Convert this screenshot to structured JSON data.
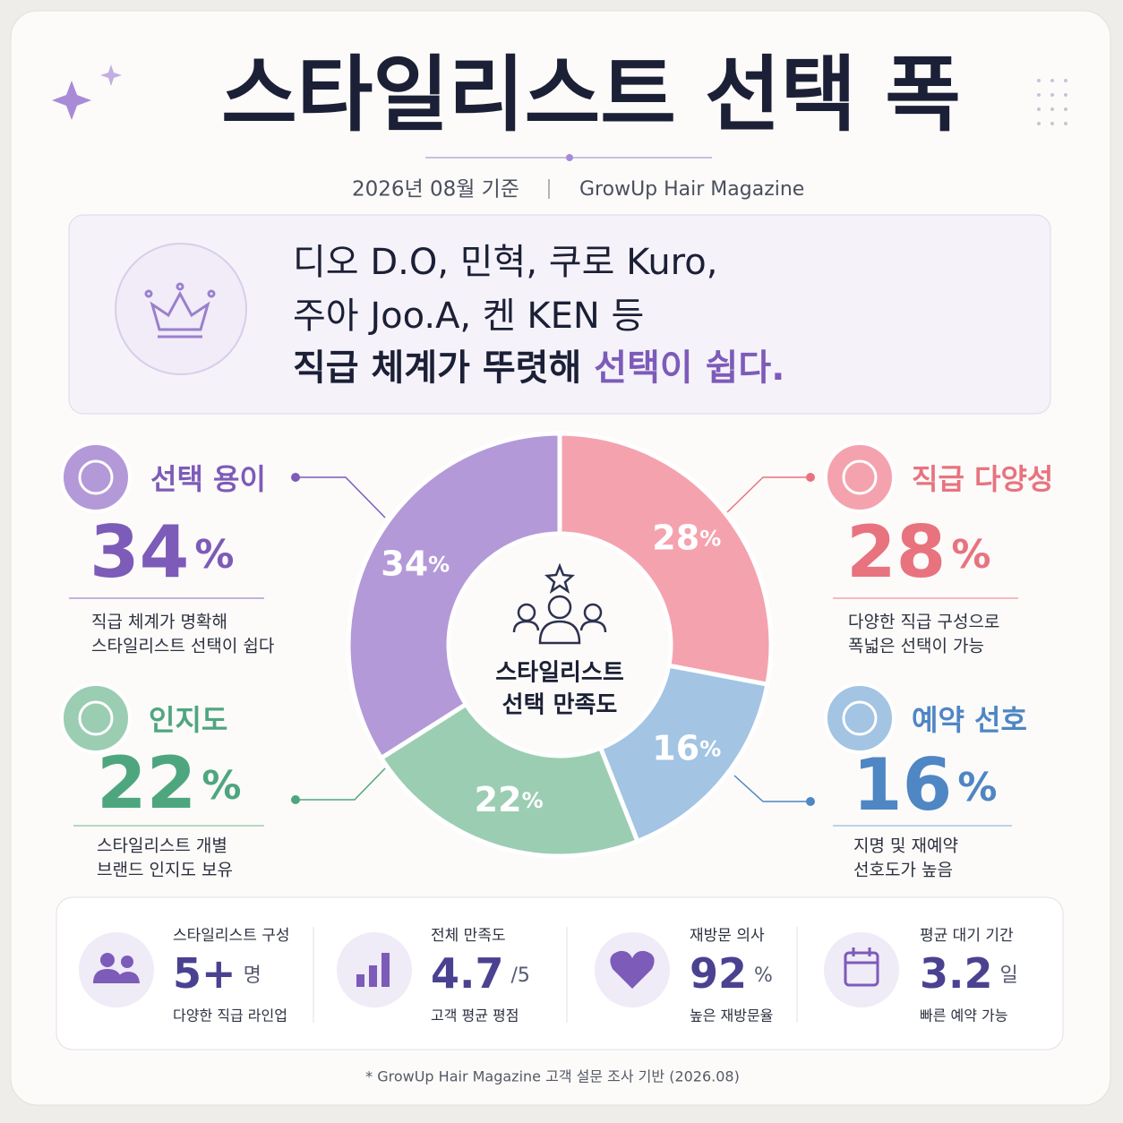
{
  "header": {
    "title": "스타일리스트 선택 폭",
    "date": "2026년 08월 기준",
    "source": "GrowUp Hair Magazine"
  },
  "summary": {
    "lines": [
      "디오 D.O, 민혁, 쿠로 Kuro,",
      "주아 Joo.A, 켄 KEN 등",
      "직급 체계가 뚜렷해"
    ],
    "highlight": "선택이 쉽다."
  },
  "chart_data": {
    "type": "donut",
    "center_label": [
      "스타일리스트",
      "선택 만족도"
    ],
    "categories": [
      "직급 다양성",
      "예약 선호",
      "인지도",
      "선택 용이"
    ],
    "values": [
      28,
      16,
      22,
      34
    ],
    "unit": "%",
    "colors": [
      "#f4a3ae",
      "#a3c4e3",
      "#9bcdb3",
      "#b499d8"
    ],
    "text_colors": [
      "#e8737f",
      "#4f86c4",
      "#4ea67f",
      "#7d5bb9"
    ],
    "descriptions": [
      [
        "다양한 직급 구성으로",
        "폭넓은 선택이 가능"
      ],
      [
        "지명 및 재예약",
        "선호도가 높음"
      ],
      [
        "스타일리스트 개별",
        "브랜드 인지도 보유"
      ],
      [
        "직급 체계가 명확해",
        "스타일리스트 선택이 쉽다"
      ]
    ]
  },
  "stats": [
    {
      "label": "스타일리스트 구성",
      "value": "5+",
      "unit": "명",
      "note": "다양한 직급 라인업"
    },
    {
      "label": "전체 만족도",
      "value": 4.7,
      "unit": "/5",
      "note": "고객 평균 평점"
    },
    {
      "label": "재방문 의사",
      "value": 92,
      "unit": "%",
      "note": "높은 재방문율"
    },
    {
      "label": "평균 대기 기간",
      "value": 3.2,
      "unit": "일",
      "note": "빠른 예약 가능"
    }
  ],
  "footnote": "* GrowUp Hair Magazine 고객 설문 조사 기반 (2026.08)"
}
